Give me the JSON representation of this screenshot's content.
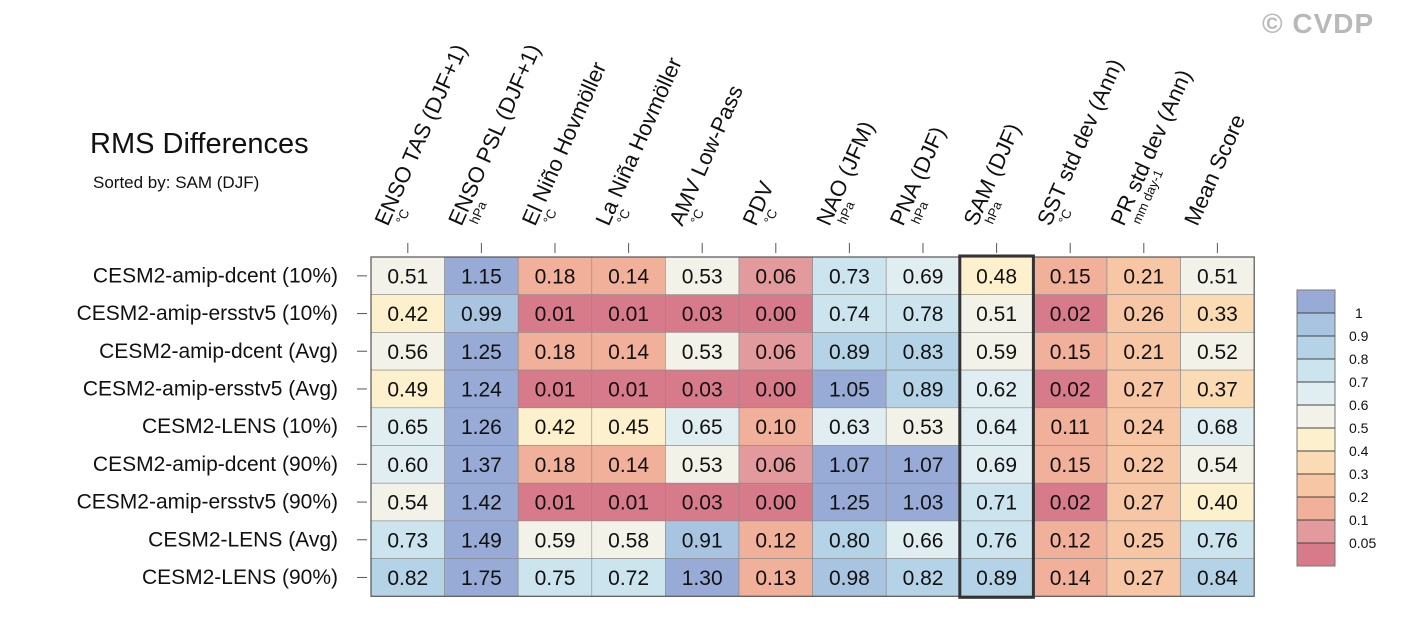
{
  "header": {
    "title": "RMS Differences",
    "subtitle": "Sorted by: SAM (DJF)",
    "watermark": "© CVDP"
  },
  "chart_data": {
    "type": "heatmap",
    "title": "RMS Differences",
    "subtitle": "Sorted by: SAM (DJF)",
    "columns": [
      {
        "label": "ENSO TAS (DJF+1)",
        "unit": "°C"
      },
      {
        "label": "ENSO PSL (DJF+1)",
        "unit": "hPa"
      },
      {
        "label": "El Niño Hovmöller",
        "unit": "°C"
      },
      {
        "label": "La Niña Hovmöller",
        "unit": "°C"
      },
      {
        "label": "AMV Low-Pass",
        "unit": "°C"
      },
      {
        "label": "PDV",
        "unit": "°C"
      },
      {
        "label": "NAO (JFM)",
        "unit": "hPa"
      },
      {
        "label": "PNA (DJF)",
        "unit": "hPa"
      },
      {
        "label": "SAM (DJF)",
        "unit": "hPa"
      },
      {
        "label": "SST std dev (Ann)",
        "unit": "°C"
      },
      {
        "label": "PR std dev (Ann)",
        "unit": "mm day-1"
      },
      {
        "label": "Mean Score",
        "unit": ""
      }
    ],
    "rows": [
      {
        "label": "CESM2-amip-dcent (10%)",
        "values": [
          "0.51",
          "1.15",
          "0.18",
          "0.14",
          "0.53",
          "0.06",
          "0.73",
          "0.69",
          "0.48",
          "0.15",
          "0.21",
          "0.51"
        ]
      },
      {
        "label": "CESM2-amip-ersstv5 (10%)",
        "values": [
          "0.42",
          "0.99",
          "0.01",
          "0.01",
          "0.03",
          "0.00",
          "0.74",
          "0.78",
          "0.51",
          "0.02",
          "0.26",
          "0.33"
        ]
      },
      {
        "label": "CESM2-amip-dcent (Avg)",
        "values": [
          "0.56",
          "1.25",
          "0.18",
          "0.14",
          "0.53",
          "0.06",
          "0.89",
          "0.83",
          "0.59",
          "0.15",
          "0.21",
          "0.52"
        ]
      },
      {
        "label": "CESM2-amip-ersstv5 (Avg)",
        "values": [
          "0.49",
          "1.24",
          "0.01",
          "0.01",
          "0.03",
          "0.00",
          "1.05",
          "0.89",
          "0.62",
          "0.02",
          "0.27",
          "0.37"
        ]
      },
      {
        "label": "CESM2-LENS (10%)",
        "values": [
          "0.65",
          "1.26",
          "0.42",
          "0.45",
          "0.65",
          "0.10",
          "0.63",
          "0.53",
          "0.64",
          "0.11",
          "0.24",
          "0.68"
        ]
      },
      {
        "label": "CESM2-amip-dcent (90%)",
        "values": [
          "0.60",
          "1.37",
          "0.18",
          "0.14",
          "0.53",
          "0.06",
          "1.07",
          "1.07",
          "0.69",
          "0.15",
          "0.22",
          "0.54"
        ]
      },
      {
        "label": "CESM2-amip-ersstv5 (90%)",
        "values": [
          "0.54",
          "1.42",
          "0.01",
          "0.01",
          "0.03",
          "0.00",
          "1.25",
          "1.03",
          "0.71",
          "0.02",
          "0.27",
          "0.40"
        ]
      },
      {
        "label": "CESM2-LENS (Avg)",
        "values": [
          "0.73",
          "1.49",
          "0.59",
          "0.58",
          "0.91",
          "0.12",
          "0.80",
          "0.66",
          "0.76",
          "0.12",
          "0.25",
          "0.76"
        ]
      },
      {
        "label": "CESM2-LENS (90%)",
        "values": [
          "0.82",
          "1.75",
          "0.75",
          "0.72",
          "1.30",
          "0.13",
          "0.98",
          "0.82",
          "0.89",
          "0.14",
          "0.27",
          "0.84"
        ]
      }
    ],
    "highlight_column": "SAM (DJF)",
    "colorbar": {
      "ticks": [
        "1",
        "0.9",
        "0.8",
        "0.7",
        "0.6",
        "0.5",
        "0.4",
        "0.3",
        "0.2",
        "0.1",
        "0.05"
      ],
      "thresholds": [
        0.05,
        0.1,
        0.2,
        0.3,
        0.4,
        0.5,
        0.6,
        0.7,
        0.8,
        0.9,
        1
      ],
      "colors": [
        "#d77b8b",
        "#e29a9c",
        "#f0b09a",
        "#f7c6a4",
        "#fbdbb3",
        "#fdf0cc",
        "#f3f2e8",
        "#e0eef2",
        "#cbe4ee",
        "#b4d3e6",
        "#a9c4e0",
        "#98abd6"
      ]
    }
  }
}
